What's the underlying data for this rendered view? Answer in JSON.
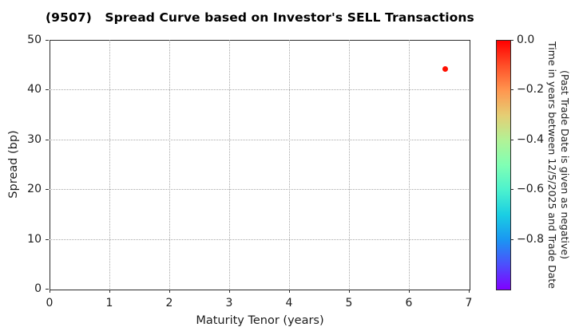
{
  "chart_data": {
    "type": "scatter",
    "title": "(9507)   Spread Curve based on Investor's SELL Transactions",
    "xlabel": "Maturity Tenor (years)",
    "ylabel": "Spread (bp)",
    "xlim": [
      0,
      7
    ],
    "ylim": [
      0,
      50
    ],
    "xticks": [
      0,
      1,
      2,
      3,
      4,
      5,
      6,
      7
    ],
    "yticks": [
      0,
      10,
      20,
      30,
      40,
      50
    ],
    "grid": true,
    "grid_style": "dotted",
    "grid_color": "#a8a8a8",
    "frame_color": "#2e2e2e",
    "background": "#ffffff",
    "points": [
      {
        "x": 6.6,
        "y": 44.1,
        "value": 0.0,
        "color": "#ff0f00"
      }
    ],
    "colorbar": {
      "colormap": "rainbow",
      "vmax": 0.0,
      "vmin": -1.0,
      "ticks": [
        {
          "value": 0.0,
          "label": "0.0"
        },
        {
          "value": -0.2,
          "label": "−0.2"
        },
        {
          "value": -0.4,
          "label": "−0.4"
        },
        {
          "value": -0.6,
          "label": "−0.6"
        },
        {
          "value": -0.8,
          "label": "−0.8"
        }
      ],
      "label_line1": "Time in years between 12/5/2025 and Trade Date",
      "label_line2": "(Past Trade Date is given as negative)",
      "gradient_stops_top_to_bottom": [
        "#ff0000",
        "#ff4f28",
        "#ff964f",
        "#e5ce74",
        "#b2f296",
        "#80ffb4",
        "#4cf2ce",
        "#1acee3",
        "#1a96f2",
        "#4c4ffc",
        "#8000ff"
      ]
    }
  }
}
